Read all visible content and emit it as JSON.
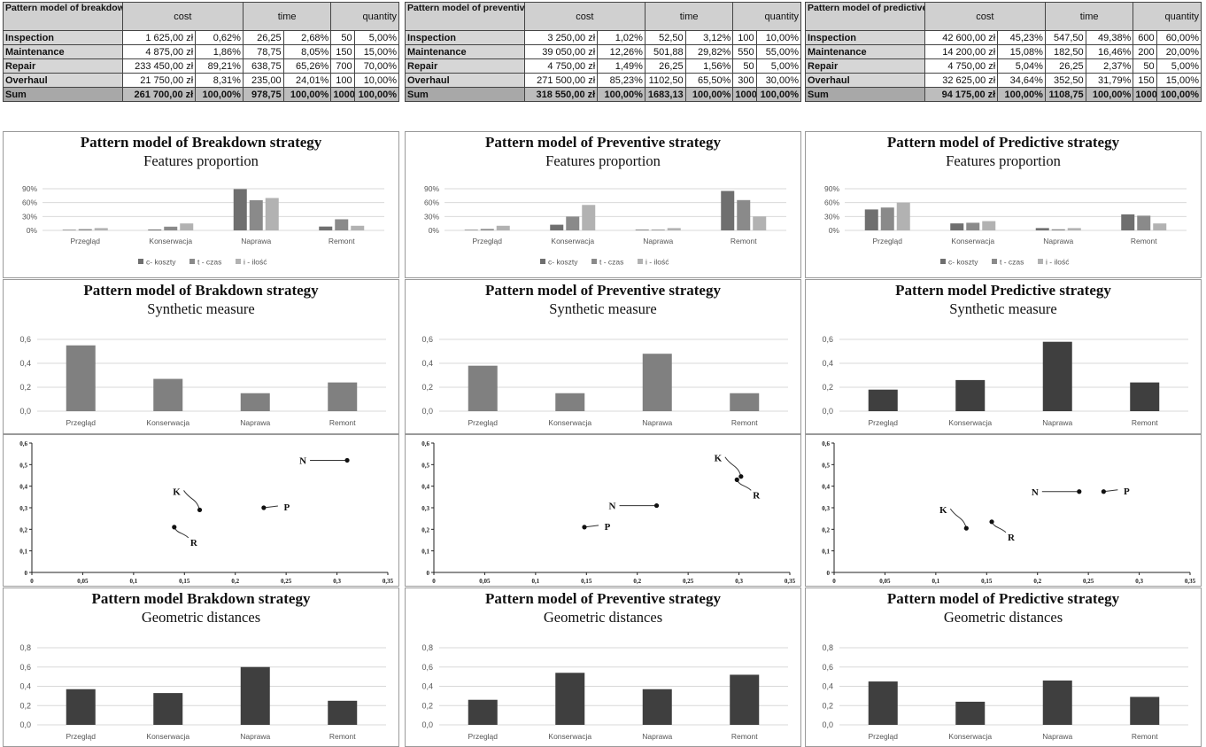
{
  "columns": [
    {
      "table": {
        "corner": "Pattern model of breakdown strategy",
        "headers": [
          "cost",
          "time",
          "quantity"
        ],
        "rows": [
          [
            "Inspection",
            "1 625,00 zł",
            "0,62%",
            "26,25",
            "2,68%",
            "50",
            "5,00%"
          ],
          [
            "Maintenance",
            "4 875,00 zł",
            "1,86%",
            "78,75",
            "8,05%",
            "150",
            "15,00%"
          ],
          [
            "Repair",
            "233 450,00 zł",
            "89,21%",
            "638,75",
            "65,26%",
            "700",
            "70,00%"
          ],
          [
            "Overhaul",
            "21 750,00 zł",
            "8,31%",
            "235,00",
            "24,01%",
            "100",
            "10,00%"
          ],
          [
            "Sum",
            "261 700,00 zł",
            "100,00%",
            "978,75",
            "100,00%",
            "1000",
            "100,00%"
          ]
        ]
      },
      "chart_data": [
        {
          "type": "bar",
          "title": "Pattern model of Breakdown strategy",
          "subtitle": "Features proportion",
          "categories": [
            "Przegląd",
            "Konserwacja",
            "Naprawa",
            "Remont"
          ],
          "series": [
            {
              "name": "c- koszty",
              "values": [
                0.0062,
                0.0186,
                0.8921,
                0.0831
              ]
            },
            {
              "name": "t - czas",
              "values": [
                0.0268,
                0.0805,
                0.6526,
                0.2401
              ]
            },
            {
              "name": "i - ilość",
              "values": [
                0.05,
                0.15,
                0.7,
                0.1
              ]
            }
          ],
          "yticks": [
            "0%",
            "30%",
            "60%",
            "90%"
          ],
          "ylim": [
            0,
            0.9
          ]
        },
        {
          "type": "bar",
          "title": "Pattern model of Brakdown strategy",
          "subtitle": "Synthetic measure",
          "categories": [
            "Przegląd",
            "Konserwacja",
            "Naprawa",
            "Remont"
          ],
          "values": [
            0.55,
            0.27,
            0.15,
            0.24
          ],
          "yticks": [
            "0,0",
            "0,2",
            "0,4",
            "0,6"
          ],
          "ylim": [
            0,
            0.6
          ]
        },
        {
          "type": "scatter",
          "xlim": [
            0,
            0.35
          ],
          "ylim": [
            0,
            0.6
          ],
          "xticks": [
            "0",
            "0,05",
            "0,1",
            "0,15",
            "0,2",
            "0,25",
            "0,3",
            "0,35"
          ],
          "yticks": [
            "0",
            "0,1",
            "0,2",
            "0,3",
            "0,4",
            "0,5",
            "0,6"
          ],
          "points": [
            {
              "label": "N",
              "x": 0.31,
              "y": 0.52
            },
            {
              "label": "K",
              "x": 0.165,
              "y": 0.29
            },
            {
              "label": "P",
              "x": 0.228,
              "y": 0.3
            },
            {
              "label": "R",
              "x": 0.14,
              "y": 0.21
            }
          ]
        },
        {
          "type": "bar",
          "title": "Pattern model Brakdown strategy",
          "subtitle": "Geometric distances",
          "categories": [
            "Przegląd",
            "Konserwacja",
            "Naprawa",
            "Remont"
          ],
          "values": [
            0.37,
            0.33,
            0.6,
            0.25
          ],
          "yticks": [
            "0,0",
            "0,2",
            "0,4",
            "0,6",
            "0,8"
          ],
          "ylim": [
            0,
            0.8
          ]
        }
      ]
    },
    {
      "table": {
        "corner": "Pattern model of preventive strategy",
        "headers": [
          "cost",
          "time",
          "quantity"
        ],
        "rows": [
          [
            "Inspection",
            "3 250,00 zł",
            "1,02%",
            "52,50",
            "3,12%",
            "100",
            "10,00%"
          ],
          [
            "Maintenance",
            "39 050,00 zł",
            "12,26%",
            "501,88",
            "29,82%",
            "550",
            "55,00%"
          ],
          [
            "Repair",
            "4 750,00 zł",
            "1,49%",
            "26,25",
            "1,56%",
            "50",
            "5,00%"
          ],
          [
            "Overhaul",
            "271 500,00 zł",
            "85,23%",
            "1102,50",
            "65,50%",
            "300",
            "30,00%"
          ],
          [
            "Sum",
            "318 550,00 zł",
            "100,00%",
            "1683,13",
            "100,00%",
            "1000",
            "100,00%"
          ]
        ]
      },
      "chart_data": [
        {
          "type": "bar",
          "title": "Pattern model of Preventive strategy",
          "subtitle": "Features proportion",
          "categories": [
            "Przegląd",
            "Konserwacja",
            "Naprawa",
            "Remont"
          ],
          "series": [
            {
              "name": "c- koszty",
              "values": [
                0.0102,
                0.1226,
                0.0149,
                0.8523
              ]
            },
            {
              "name": "t - czas",
              "values": [
                0.0312,
                0.2982,
                0.0156,
                0.655
              ]
            },
            {
              "name": "i - ilość",
              "values": [
                0.1,
                0.55,
                0.05,
                0.3
              ]
            }
          ],
          "yticks": [
            "0%",
            "30%",
            "60%",
            "90%"
          ],
          "ylim": [
            0,
            0.9
          ]
        },
        {
          "type": "bar",
          "title": "Pattern model of Preventive strategy",
          "subtitle": "Synthetic measure",
          "categories": [
            "Przegląd",
            "Konserwacja",
            "Naprawa",
            "Remont"
          ],
          "values": [
            0.38,
            0.15,
            0.48,
            0.15
          ],
          "yticks": [
            "0,0",
            "0,2",
            "0,4",
            "0,6"
          ],
          "ylim": [
            0,
            0.6
          ]
        },
        {
          "type": "scatter",
          "xlim": [
            0,
            0.35
          ],
          "ylim": [
            0,
            0.6
          ],
          "xticks": [
            "0",
            "0,05",
            "0,1",
            "0,15",
            "0,2",
            "0,25",
            "0,3",
            "0,35"
          ],
          "yticks": [
            "0",
            "0,1",
            "0,2",
            "0,3",
            "0,4",
            "0,5",
            "0,6"
          ],
          "points": [
            {
              "label": "K",
              "x": 0.302,
              "y": 0.445
            },
            {
              "label": "R",
              "x": 0.298,
              "y": 0.43
            },
            {
              "label": "N",
              "x": 0.219,
              "y": 0.31
            },
            {
              "label": "P",
              "x": 0.148,
              "y": 0.21
            }
          ]
        },
        {
          "type": "bar",
          "title": "Pattern model of Preventive strategy",
          "subtitle": "Geometric distances",
          "categories": [
            "Przegląd",
            "Konserwacja",
            "Naprawa",
            "Remont"
          ],
          "values": [
            0.26,
            0.54,
            0.37,
            0.52
          ],
          "yticks": [
            "0,0",
            "0,2",
            "0,4",
            "0,6",
            "0,8"
          ],
          "ylim": [
            0,
            0.8
          ]
        }
      ]
    },
    {
      "table": {
        "corner": "Pattern model of predictive strategy",
        "headers": [
          "cost",
          "time",
          "quantity"
        ],
        "rows": [
          [
            "Inspection",
            "42 600,00 zł",
            "45,23%",
            "547,50",
            "49,38%",
            "600",
            "60,00%"
          ],
          [
            "Maintenance",
            "14 200,00 zł",
            "15,08%",
            "182,50",
            "16,46%",
            "200",
            "20,00%"
          ],
          [
            "Repair",
            "4 750,00 zł",
            "5,04%",
            "26,25",
            "2,37%",
            "50",
            "5,00%"
          ],
          [
            "Overhaul",
            "32 625,00 zł",
            "34,64%",
            "352,50",
            "31,79%",
            "150",
            "15,00%"
          ],
          [
            "Sum",
            "94 175,00 zł",
            "100,00%",
            "1108,75",
            "100,00%",
            "1000",
            "100,00%"
          ]
        ]
      },
      "chart_data": [
        {
          "type": "bar",
          "title": "Pattern model of Predictive strategy",
          "subtitle": "Features proportion",
          "categories": [
            "Przegląd",
            "Konserwacja",
            "Naprawa",
            "Remont"
          ],
          "series": [
            {
              "name": "c- koszty",
              "values": [
                0.4523,
                0.1508,
                0.0504,
                0.3464
              ]
            },
            {
              "name": "t - czas",
              "values": [
                0.4938,
                0.1646,
                0.0237,
                0.3179
              ]
            },
            {
              "name": "i - ilość",
              "values": [
                0.6,
                0.2,
                0.05,
                0.15
              ]
            }
          ],
          "yticks": [
            "0%",
            "30%",
            "60%",
            "90%"
          ],
          "ylim": [
            0,
            0.9
          ]
        },
        {
          "type": "bar",
          "title": "Pattern model Predictive strategy",
          "subtitle": "Synthetic measure",
          "categories": [
            "Przegląd",
            "Konserwacja",
            "Naprawa",
            "Remont"
          ],
          "values": [
            0.18,
            0.26,
            0.58,
            0.24
          ],
          "yticks": [
            "0,0",
            "0,2",
            "0,4",
            "0,6"
          ],
          "ylim": [
            0,
            0.6
          ]
        },
        {
          "type": "scatter",
          "xlim": [
            0,
            0.35
          ],
          "ylim": [
            0,
            0.6
          ],
          "xticks": [
            "0",
            "0,05",
            "0,1",
            "0,15",
            "0,2",
            "0,25",
            "0,3",
            "0,35"
          ],
          "yticks": [
            "0",
            "0,1",
            "0,2",
            "0,3",
            "0,4",
            "0,5",
            "0,6"
          ],
          "points": [
            {
              "label": "N",
              "x": 0.241,
              "y": 0.375
            },
            {
              "label": "P",
              "x": 0.265,
              "y": 0.375
            },
            {
              "label": "K",
              "x": 0.13,
              "y": 0.205
            },
            {
              "label": "R",
              "x": 0.155,
              "y": 0.235
            }
          ]
        },
        {
          "type": "bar",
          "title": "Pattern model of Predictive strategy",
          "subtitle": "Geometric distances",
          "categories": [
            "Przegląd",
            "Konserwacja",
            "Naprawa",
            "Remont"
          ],
          "values": [
            0.45,
            0.24,
            0.46,
            0.29
          ],
          "yticks": [
            "0,0",
            "0,2",
            "0,4",
            "0,6",
            "0,8"
          ],
          "ylim": [
            0,
            0.8
          ]
        }
      ]
    }
  ],
  "colors": {
    "cost": "#6f6f6f",
    "time": "#8a8a8a",
    "quantity": "#b2b2b2",
    "synthetic": [
      "#808080",
      "#808080",
      "#3f3f3f"
    ],
    "distance": "#3f3f3f",
    "grid": "#d9d9d9",
    "axis_text": "#555555"
  }
}
